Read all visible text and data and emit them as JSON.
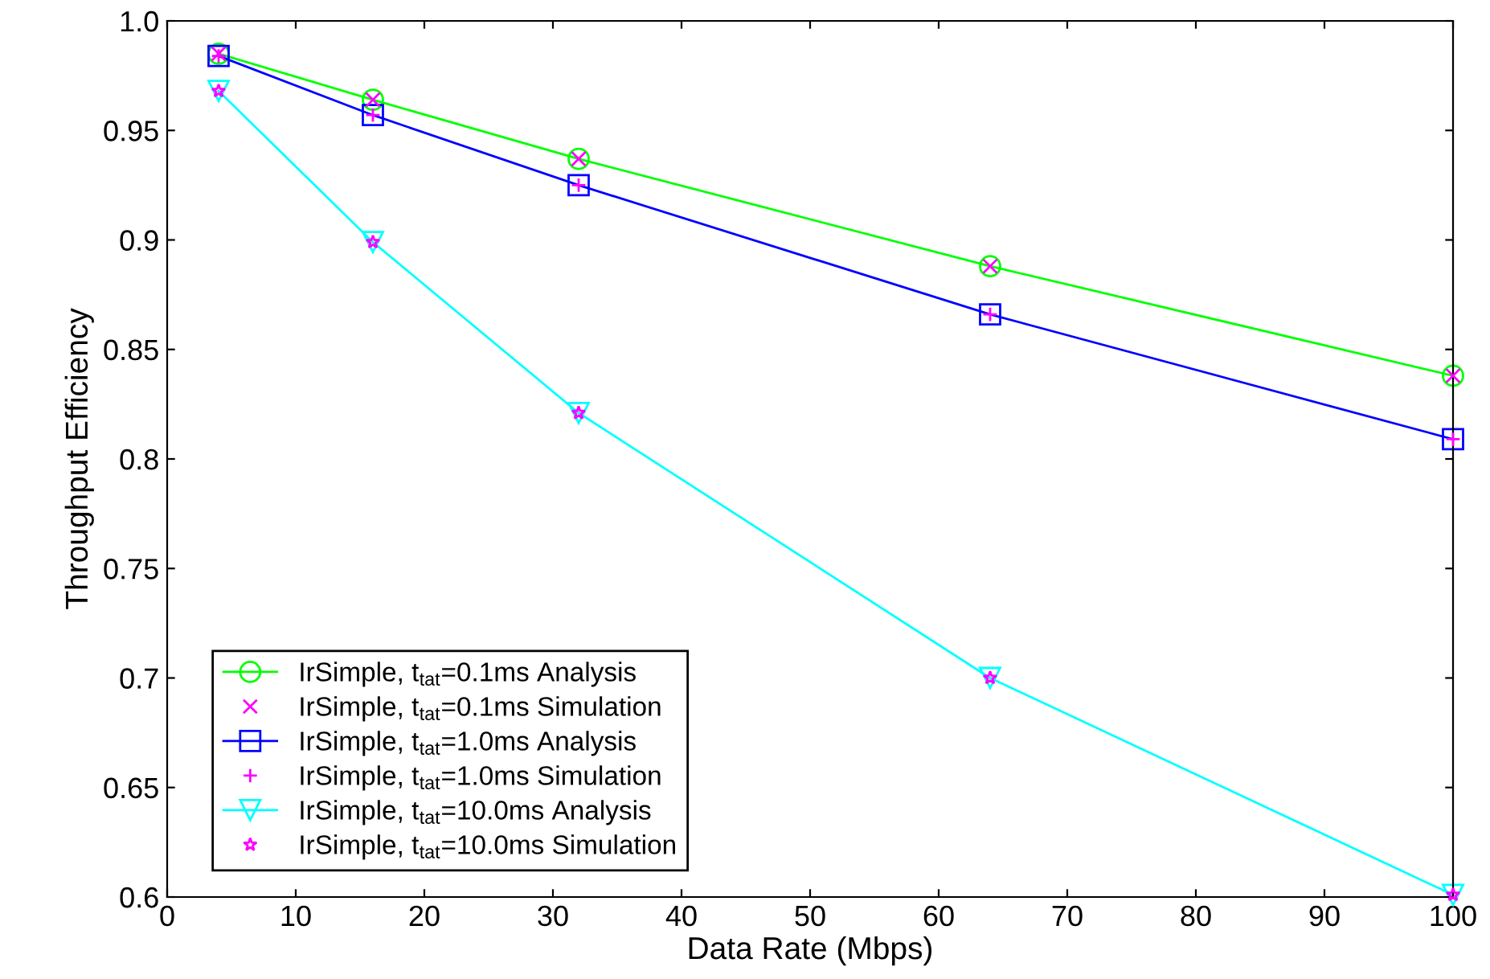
{
  "chart_data": {
    "type": "line",
    "xlabel": "Data Rate (Mbps)",
    "ylabel": "Throughput Efficiency",
    "x": [
      4,
      16,
      32,
      64,
      100
    ],
    "xlim": [
      0,
      100
    ],
    "xticks": [
      0,
      10,
      20,
      30,
      40,
      50,
      60,
      70,
      80,
      90,
      100
    ],
    "ylim": [
      0.6,
      1.0
    ],
    "yticks": [
      {
        "value": 0.6,
        "label": "0.6"
      },
      0.65,
      {
        "value": 0.7,
        "label": "0.7"
      },
      0.75,
      {
        "value": 0.8,
        "label": "0.8"
      },
      0.85,
      {
        "value": 0.9,
        "label": "0.9"
      },
      0.95,
      {
        "value": 1.0,
        "label": "1.0"
      }
    ],
    "grid": false,
    "legend": "bottom left",
    "series": [
      {
        "name": "IrSimple, t$_{tat}$=0.1ms Analysis",
        "color": "#00ff00",
        "marker": "circle",
        "values": [
          0.985,
          0.964,
          0.937,
          0.888,
          0.838
        ]
      },
      {
        "name": "IrSimple, t$_{tat}$=0.1ms Simulation",
        "type": "scatter",
        "color": "#ff00ff",
        "marker": "cross",
        "values": [
          0.985,
          0.964,
          0.937,
          0.888,
          0.838
        ]
      },
      {
        "name": "IrSimple, t$_{tat}$=1.0ms Analysis",
        "color": "#0000ff",
        "marker": "square",
        "values": [
          0.984,
          0.957,
          0.925,
          0.866,
          0.809
        ]
      },
      {
        "name": "IrSimple, t$_{tat}$=1.0ms Simulation",
        "type": "scatter",
        "color": "#ff00ff",
        "marker": "plus",
        "values": [
          0.984,
          0.957,
          0.925,
          0.866,
          0.809
        ]
      },
      {
        "name": "IrSimple, t$_{tat}$=10.0ms Analysis",
        "color": "#00ffff",
        "marker": "triangle",
        "values": [
          0.968,
          0.899,
          0.821,
          0.7,
          0.601
        ]
      },
      {
        "name": "IrSimple, t$_{tat}$=10.0ms Simulation",
        "type": "scatter",
        "color": "#ff00ff",
        "marker": "star",
        "values": [
          0.968,
          0.899,
          0.821,
          0.7,
          0.601
        ]
      }
    ]
  }
}
